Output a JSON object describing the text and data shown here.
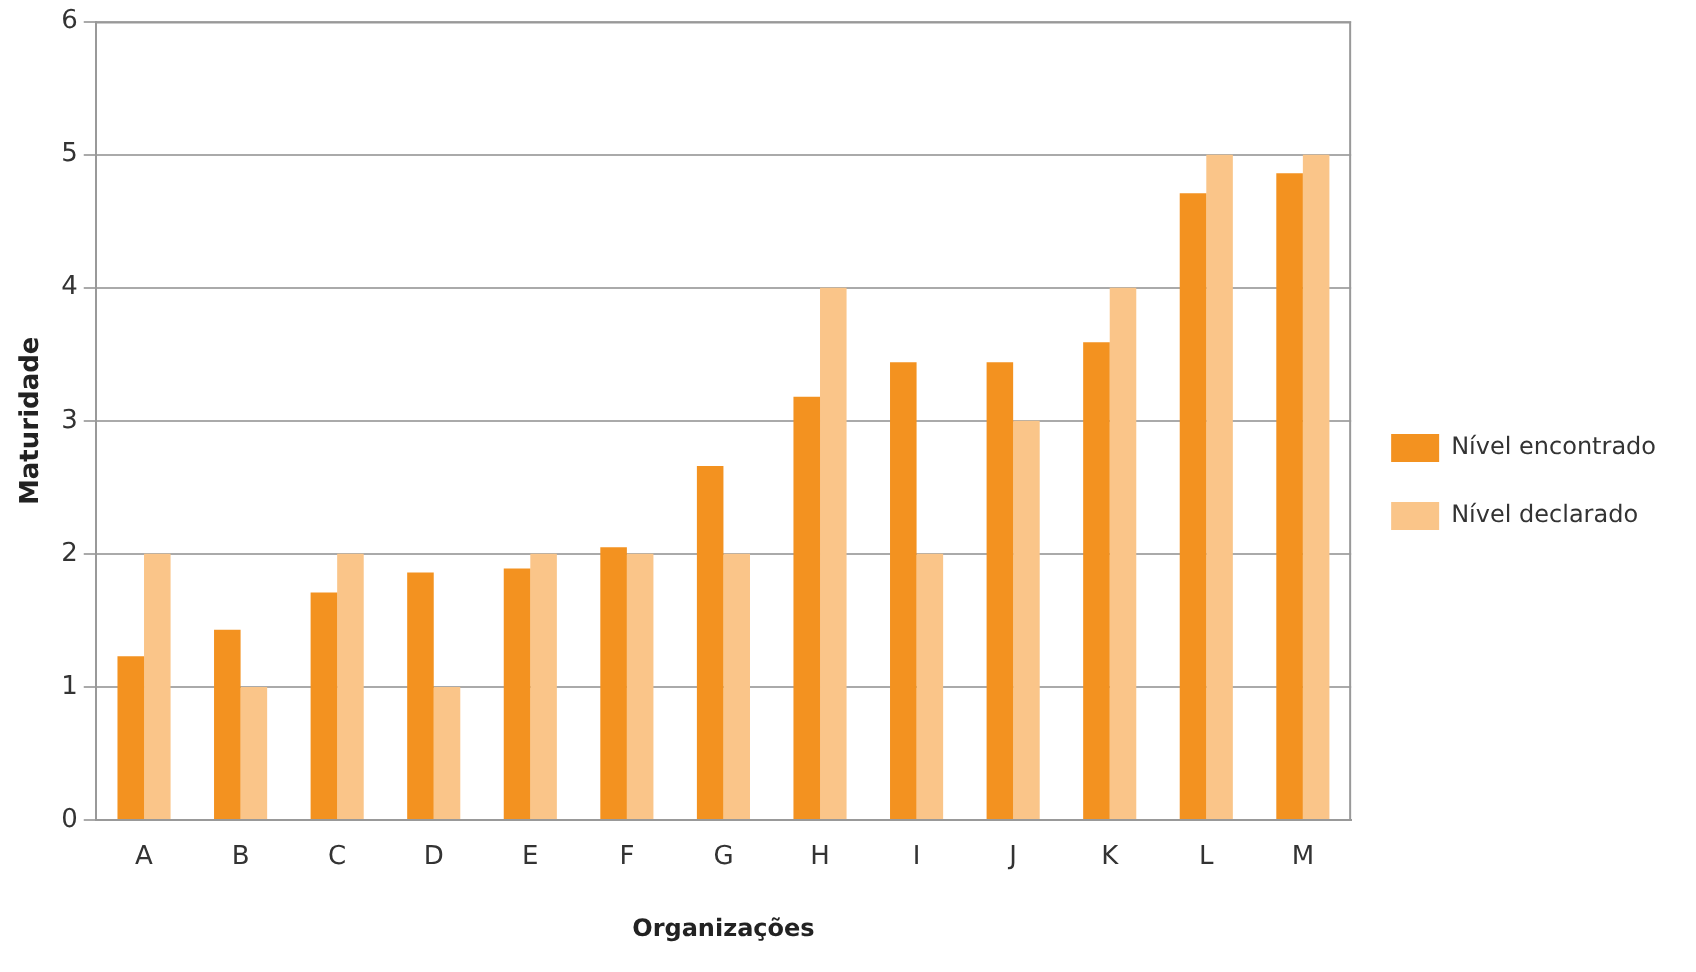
{
  "chart_data": {
    "type": "bar",
    "xlabel": "Organizações",
    "ylabel": "Maturidade",
    "categories": [
      "A",
      "B",
      "C",
      "D",
      "E",
      "F",
      "G",
      "H",
      "I",
      "J",
      "K",
      "L",
      "M"
    ],
    "series": [
      {
        "name": "Nível encontrado",
        "color": "#f39220",
        "values": [
          1.23,
          1.43,
          1.71,
          1.86,
          1.89,
          2.05,
          2.66,
          3.18,
          3.44,
          3.44,
          3.59,
          4.71,
          4.86
        ]
      },
      {
        "name": "Nível declarado",
        "color": "#fac589",
        "values": [
          2,
          1,
          2,
          1,
          2,
          2,
          2,
          4,
          2,
          3,
          4,
          5,
          5
        ]
      }
    ],
    "ylim": [
      0,
      6
    ],
    "yticks": [
      0,
      1,
      2,
      3,
      4,
      5,
      6
    ],
    "grid": "y",
    "legend": "right"
  }
}
